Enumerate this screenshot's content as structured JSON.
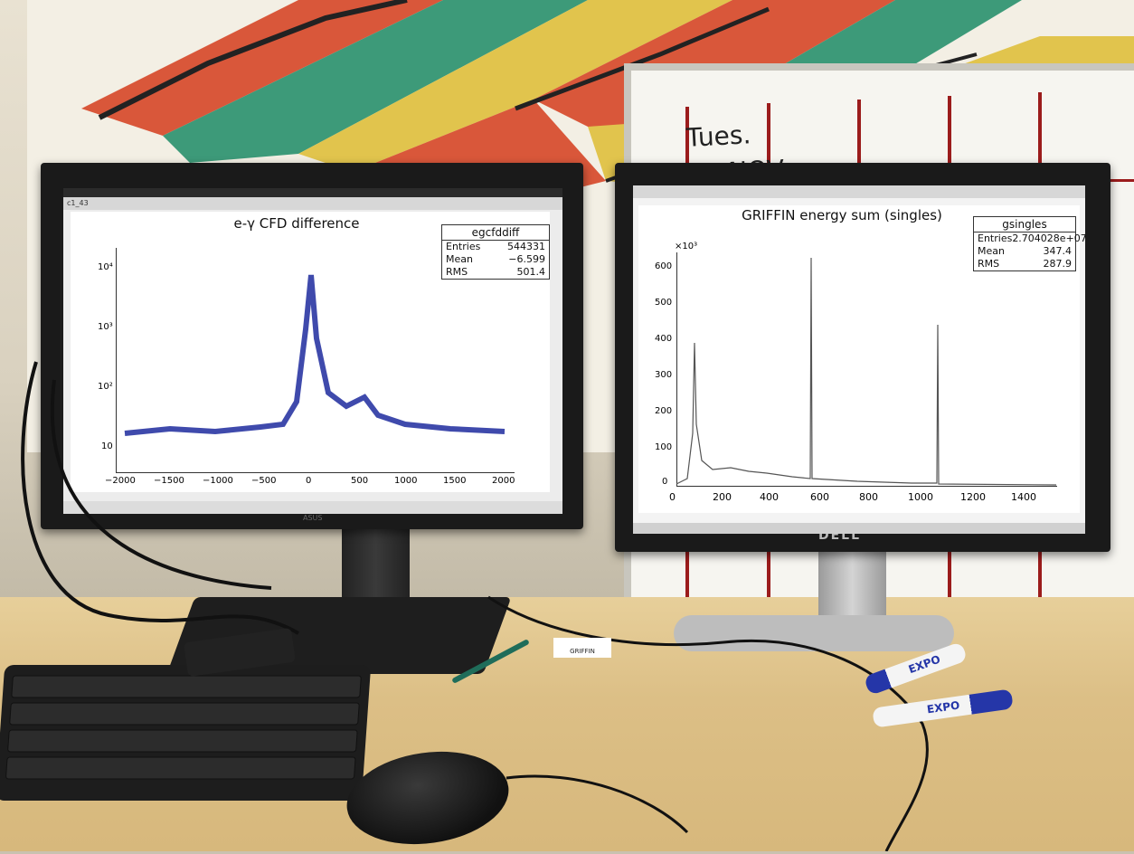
{
  "scene": {
    "whiteboard_text": [
      "Tues.",
      "01 NOV."
    ]
  },
  "left_monitor": {
    "brand": "ASUS",
    "window_title": "c1_43",
    "plot": {
      "title": "e-γ CFD difference",
      "stats": {
        "name": "egcfddiff",
        "rows": [
          {
            "label": "Entries",
            "value": "544331"
          },
          {
            "label": "Mean",
            "value": "−6.599"
          },
          {
            "label": "RMS",
            "value": "501.4"
          }
        ]
      },
      "y_ticks": [
        "10⁴",
        "10³",
        "10²",
        "10"
      ],
      "x_ticks": [
        "−2000",
        "−1500",
        "−1000",
        "−500",
        "0",
        "500",
        "1000",
        "1500",
        "2000"
      ]
    }
  },
  "right_monitor": {
    "brand": "DELL",
    "plot": {
      "title": "GRIFFIN energy sum (singles)",
      "stats": {
        "name": "gsingles",
        "rows": [
          {
            "label": "Entries",
            "value": "2.704028e+07"
          },
          {
            "label": "Mean",
            "value": "347.4"
          },
          {
            "label": "RMS",
            "value": "287.9"
          }
        ]
      },
      "y_multiplier": "×10³",
      "y_ticks": [
        "600",
        "500",
        "400",
        "300",
        "200",
        "100",
        "0"
      ],
      "x_ticks": [
        "0",
        "200",
        "400",
        "600",
        "800",
        "1000",
        "1200",
        "1400"
      ]
    }
  },
  "desk": {
    "sticker_text": "GRIFFIN",
    "marker_label": "EXPO"
  },
  "colors": {
    "histogram_left": "#1d2a9e",
    "histogram_right": "#555555",
    "whiteboard_grid": "#9b1c1c"
  }
}
